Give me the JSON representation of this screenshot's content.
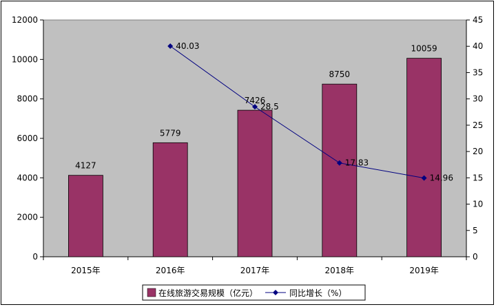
{
  "chart_data": {
    "type": "bar",
    "categories": [
      "2015年",
      "2016年",
      "2017年",
      "2018年",
      "2019年"
    ],
    "series": [
      {
        "name": "在线旅游交易规模（亿元）",
        "type": "bar",
        "axis": "left",
        "values": [
          4127,
          5779,
          7426,
          8750,
          10059
        ],
        "labels": [
          "4127",
          "5779",
          "7426",
          "8750",
          "10059"
        ]
      },
      {
        "name": "同比增长（%）",
        "type": "line",
        "axis": "right",
        "values": [
          null,
          40.03,
          28.5,
          17.83,
          14.96
        ],
        "labels": [
          "",
          "40.03",
          "28.5",
          "17.83",
          "14.96"
        ]
      }
    ],
    "ylim_left": [
      0,
      12000
    ],
    "yticks_left": [
      0,
      2000,
      4000,
      6000,
      8000,
      10000,
      12000
    ],
    "ylim_right": [
      0,
      45
    ],
    "yticks_right": [
      0,
      5,
      10,
      15,
      20,
      25,
      30,
      35,
      40,
      45
    ],
    "grid": false,
    "legend_position": "bottom",
    "colors": {
      "plot_background": "#c0c0c0",
      "bar_fill": "#993366",
      "line": "#000080"
    }
  }
}
